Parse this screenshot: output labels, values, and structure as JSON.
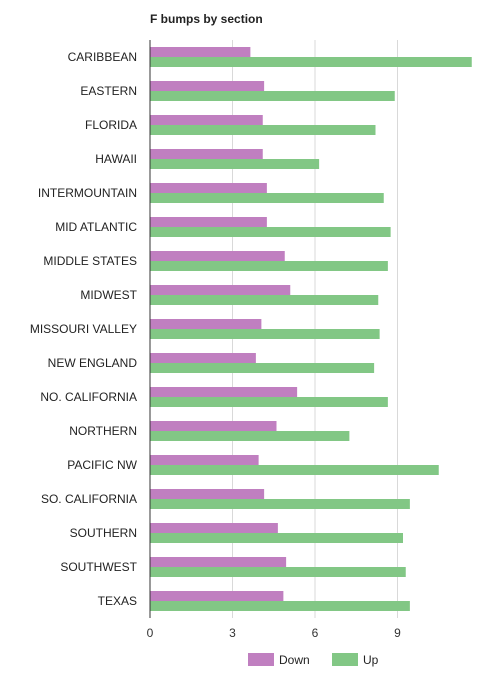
{
  "chart_data": {
    "type": "bar",
    "orientation": "horizontal",
    "title": "F bumps by section",
    "xlabel": "",
    "ylabel": "",
    "categories": [
      "CARIBBEAN",
      "EASTERN",
      "FLORIDA",
      "HAWAII",
      "INTERMOUNTAIN",
      "MID ATLANTIC",
      "MIDDLE STATES",
      "MIDWEST",
      "MISSOURI VALLEY",
      "NEW ENGLAND",
      "NO. CALIFORNIA",
      "NORTHERN",
      "PACIFIC NW",
      "SO. CALIFORNIA",
      "SOUTHERN",
      "SOUTHWEST",
      "TEXAS"
    ],
    "series": [
      {
        "name": "Down",
        "color": "#c07fc0",
        "values": [
          3.65,
          4.15,
          4.1,
          4.1,
          4.25,
          4.25,
          4.9,
          5.1,
          4.05,
          3.85,
          5.35,
          4.6,
          3.95,
          4.15,
          4.65,
          4.95,
          4.85
        ]
      },
      {
        "name": "Up",
        "color": "#82c785",
        "values": [
          11.7,
          8.9,
          8.2,
          6.15,
          8.5,
          8.75,
          8.65,
          8.3,
          8.35,
          8.15,
          8.65,
          7.25,
          10.5,
          9.45,
          9.2,
          9.3,
          9.45
        ]
      }
    ],
    "xlim": [
      0,
      12
    ],
    "xticks": [
      0,
      3,
      6,
      9
    ],
    "grid": true,
    "legend_position": "bottom"
  }
}
